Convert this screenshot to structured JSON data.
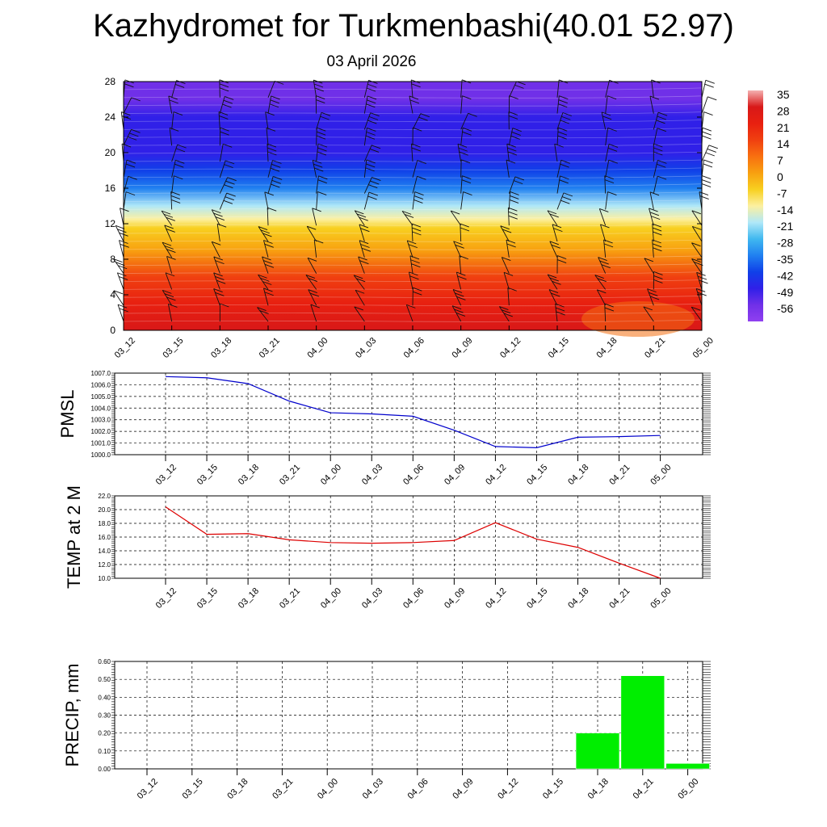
{
  "header": {
    "title": "Kazhydromet for Turkmenbashi(40.01 52.97)",
    "date": "03 April 2026"
  },
  "chart_data": [
    {
      "type": "heatmap",
      "name": "temperature-profile",
      "ylim": [
        0,
        28
      ],
      "y_ticks": [
        "0",
        "4",
        "8",
        "12",
        "16",
        "20",
        "24",
        "28"
      ],
      "x_ticks": [
        "03_12",
        "03_15",
        "03_18",
        "03_21",
        "04_00",
        "04_03",
        "04_06",
        "04_09",
        "04_12",
        "04_15",
        "04_18",
        "04_21",
        "05_00"
      ],
      "colorbar_labels": [
        "35",
        "28",
        "21",
        "14",
        "7",
        "0",
        "-7",
        "-14",
        "-21",
        "-28",
        "-35",
        "-42",
        "-49",
        "-56"
      ],
      "colorbar_colors": [
        "#f4b0b0",
        "#d81818",
        "#e82010",
        "#f04010",
        "#f87010",
        "#f8a010",
        "#f8d020",
        "#fcf0a0",
        "#b0e8f8",
        "#40b8f0",
        "#2080f0",
        "#1040e8",
        "#3020e8",
        "#7030e8",
        "#9040f0"
      ],
      "level_temps": [
        {
          "y": 0,
          "t": 25
        },
        {
          "y": 3,
          "t": 21
        },
        {
          "y": 6,
          "t": 12
        },
        {
          "y": 9,
          "t": 3
        },
        {
          "y": 11.5,
          "t": -5
        },
        {
          "y": 12.5,
          "t": -14
        },
        {
          "y": 14,
          "t": -24
        },
        {
          "y": 16,
          "t": -35
        },
        {
          "y": 18,
          "t": -44
        },
        {
          "y": 20,
          "t": -49
        },
        {
          "y": 22,
          "t": -48
        },
        {
          "y": 24,
          "t": -52
        },
        {
          "y": 26,
          "t": -57
        },
        {
          "y": 28,
          "t": -60
        }
      ]
    },
    {
      "type": "line",
      "name": "pmsl",
      "ylabel": "PMSL",
      "ylim": [
        1000,
        1007
      ],
      "y_ticks": [
        "1000.0",
        "1001.0",
        "1002.0",
        "1003.0",
        "1004.0",
        "1005.0",
        "1006.0",
        "1007.0"
      ],
      "x_ticks": [
        "03_12",
        "03_15",
        "03_18",
        "03_21",
        "04_00",
        "04_03",
        "04_06",
        "04_09",
        "04_12",
        "04_15",
        "04_18",
        "04_21",
        "05_00"
      ],
      "values": [
        1006.7,
        1006.6,
        1006.1,
        1004.6,
        1003.6,
        1003.5,
        1003.3,
        1002.1,
        1000.7,
        1000.6,
        1001.5,
        1001.55,
        1001.65
      ],
      "color": "#0000cc"
    },
    {
      "type": "line",
      "name": "temp-2m",
      "ylabel": "TEMP at 2 M",
      "ylim": [
        10,
        22
      ],
      "y_ticks": [
        "10.0",
        "12.0",
        "14.0",
        "16.0",
        "18.0",
        "20.0",
        "22.0"
      ],
      "x_ticks": [
        "03_12",
        "03_15",
        "03_18",
        "03_21",
        "04_00",
        "04_03",
        "04_06",
        "04_09",
        "04_12",
        "04_15",
        "04_18",
        "04_21",
        "05_00"
      ],
      "values": [
        20.4,
        16.4,
        16.5,
        15.6,
        15.2,
        15.1,
        15.2,
        15.5,
        18.1,
        15.7,
        14.5,
        12.2,
        10.0
      ],
      "color": "#dd0000"
    },
    {
      "type": "bar",
      "name": "precip",
      "ylabel": "PRECIP, mm",
      "ylim": [
        0,
        0.6
      ],
      "y_ticks": [
        "0.00",
        "0.10",
        "0.20",
        "0.30",
        "0.40",
        "0.50",
        "0.60"
      ],
      "x_ticks": [
        "03_12",
        "03_15",
        "03_18",
        "03_21",
        "04_00",
        "04_03",
        "04_06",
        "04_09",
        "04_12",
        "04_15",
        "04_18",
        "04_21",
        "05_00"
      ],
      "values": [
        0,
        0,
        0,
        0,
        0,
        0,
        0,
        0,
        0,
        0,
        0.2,
        0.52,
        0.03
      ],
      "color": "#00ee00"
    }
  ]
}
